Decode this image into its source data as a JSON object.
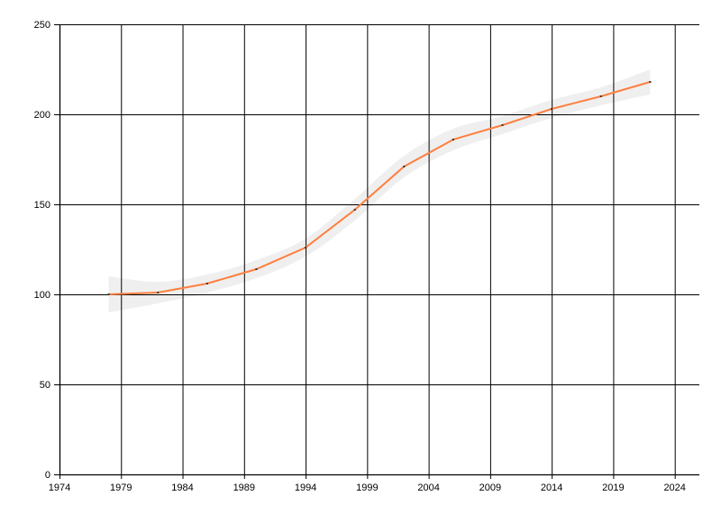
{
  "chart_data": {
    "type": "line",
    "title": "",
    "xlabel": "",
    "ylabel": "",
    "xlim": [
      1974,
      2026
    ],
    "ylim": [
      0,
      250
    ],
    "x_ticks": [
      1974,
      1979,
      1984,
      1989,
      1994,
      1999,
      2004,
      2009,
      2014,
      2019,
      2024
    ],
    "y_ticks": [
      0,
      50,
      100,
      150,
      200,
      250
    ],
    "grid": true,
    "x": [
      1978,
      1982,
      1986,
      1990,
      1994,
      1998,
      2002,
      2006,
      2010,
      2014,
      2018,
      2022
    ],
    "series": [
      {
        "values": [
          100,
          101,
          106,
          114,
          126,
          147,
          171,
          186,
          194,
          203,
          210,
          218
        ],
        "color": "#ff7f3f",
        "band_upper": [
          110,
          107,
          111,
          119,
          131,
          153,
          177,
          192,
          199,
          208,
          215,
          225
        ],
        "band_lower": [
          90,
          95,
          101,
          109,
          121,
          141,
          165,
          180,
          189,
          198,
          205,
          211
        ],
        "band_color": "#efefef"
      }
    ]
  }
}
